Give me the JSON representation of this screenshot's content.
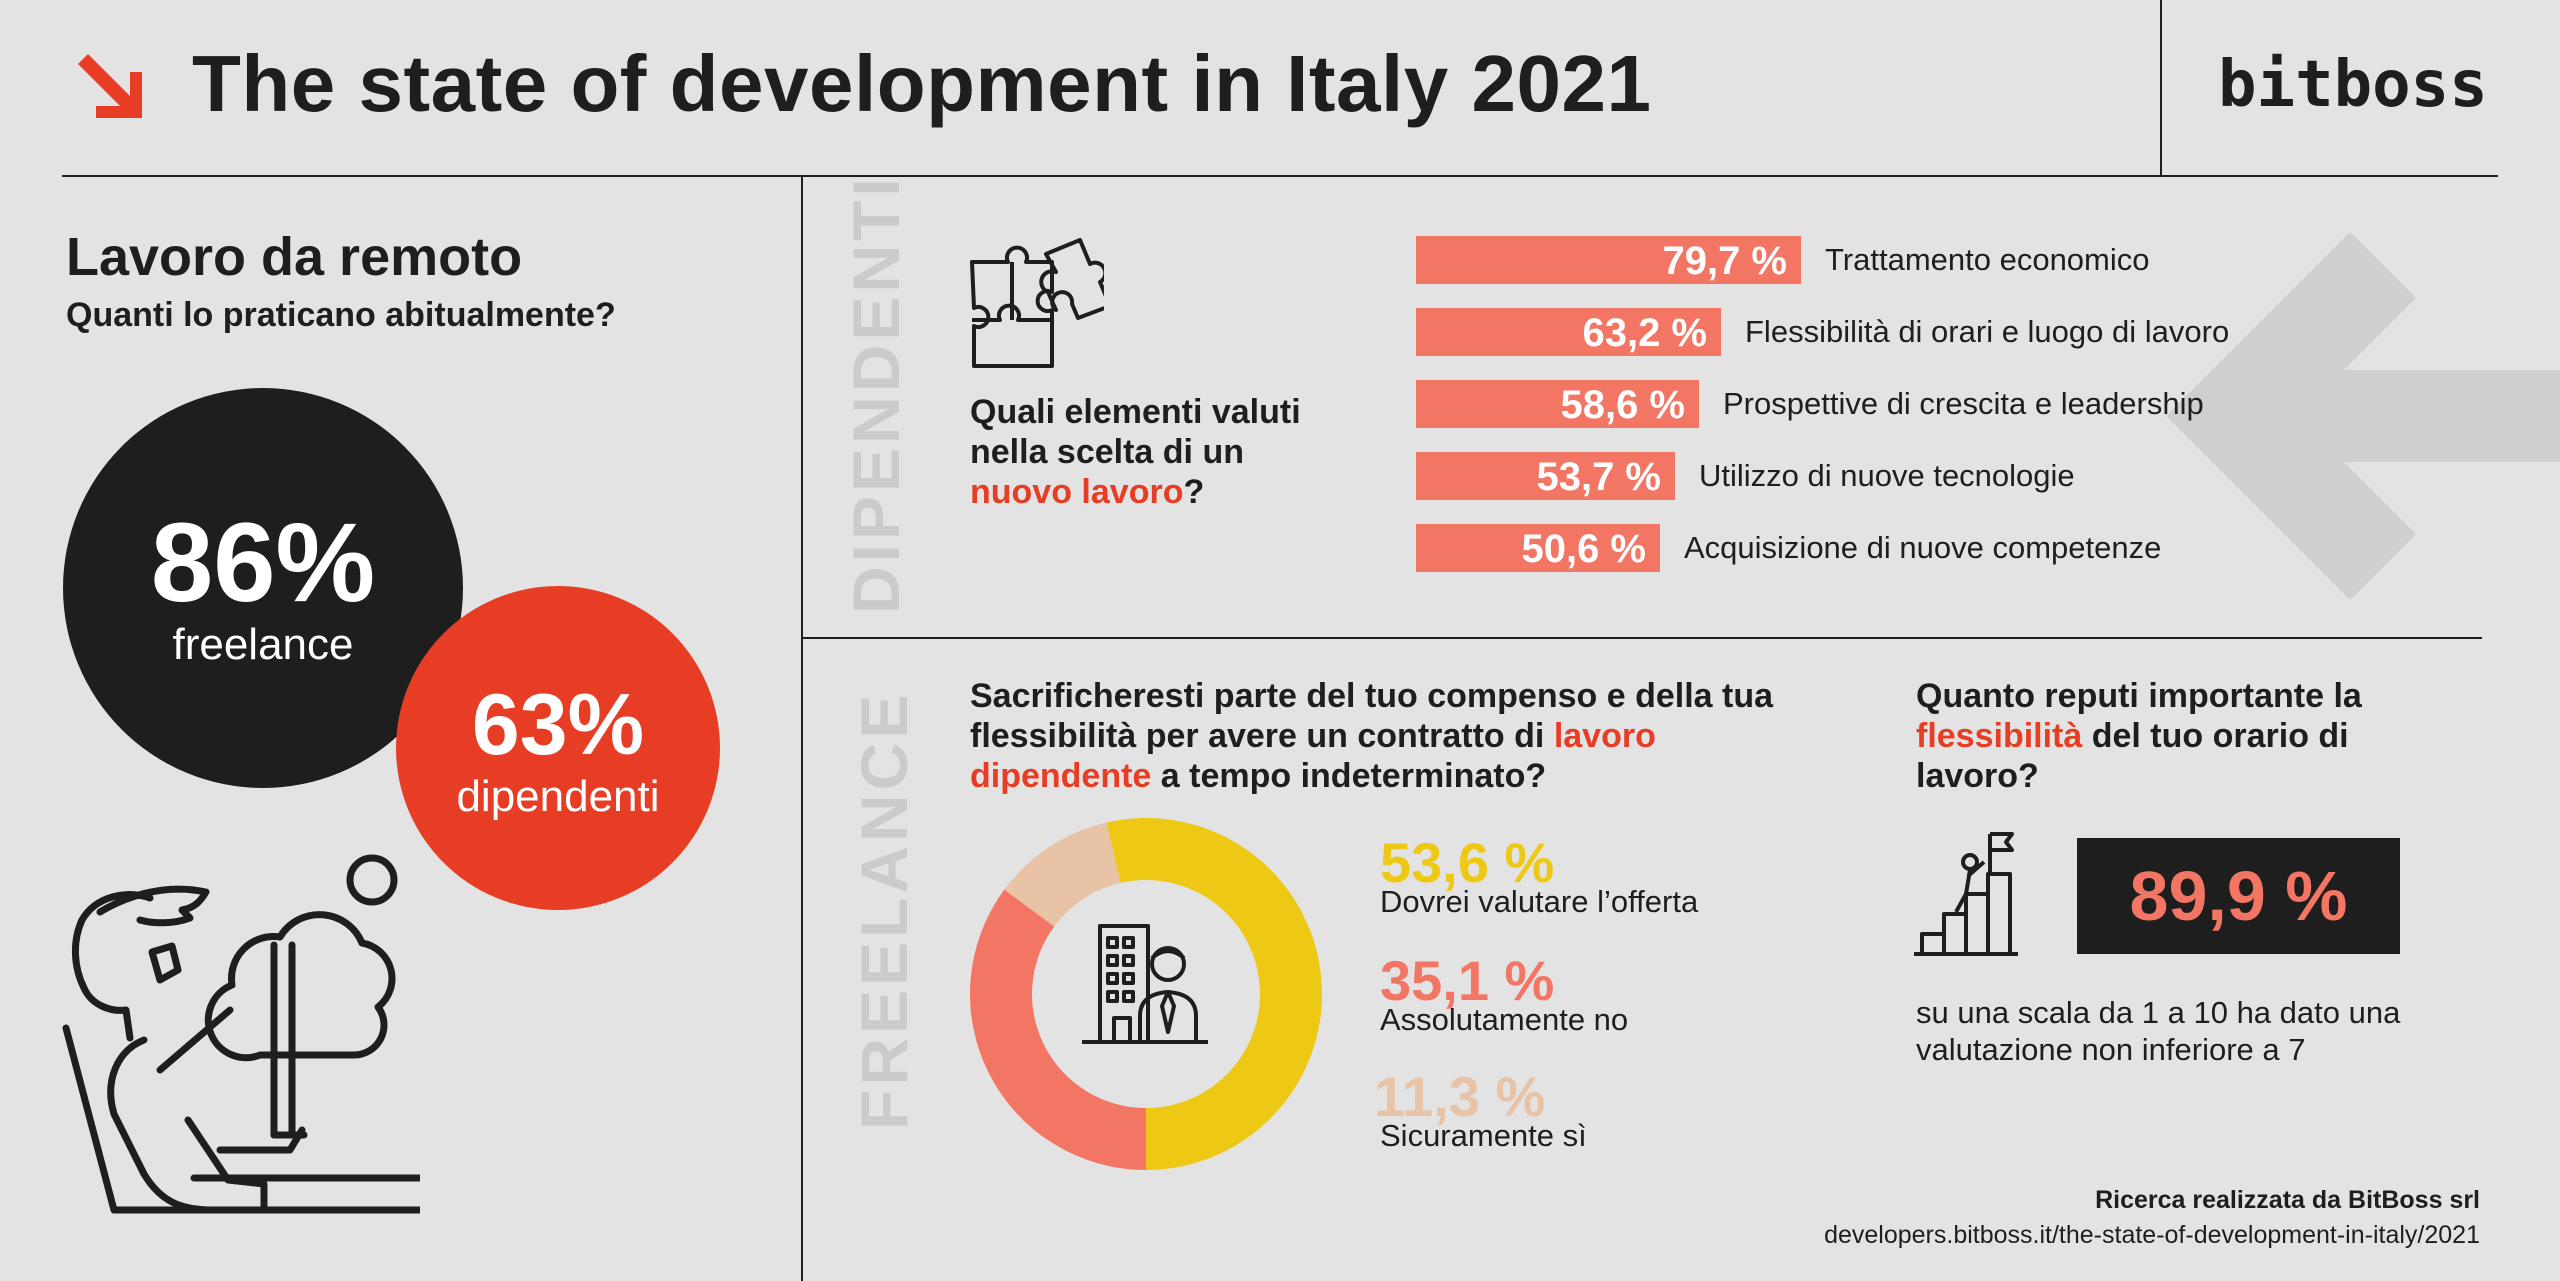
{
  "header": {
    "title": "The state of development in Italy 2021",
    "brand": "bitboss",
    "accent_color": "#e63d24"
  },
  "remote": {
    "title": "Lavoro da remoto",
    "subtitle": "Quanti lo praticano abitualmente?",
    "freelance": {
      "value": "86%",
      "label": "freelance"
    },
    "dipendenti": {
      "value": "63%",
      "label": "dipendenti"
    }
  },
  "dipendenti_section": {
    "side_label": "DIPENDENTI",
    "question_part1": "Quali elementi valuti nella scelta di un ",
    "question_highlight": "nuovo lavoro",
    "question_part2": "?"
  },
  "freelance_section": {
    "side_label": "FREELANCE",
    "question_part1": "Sacrificheresti parte del tuo compenso e della tua flessibilità per avere un contratto di ",
    "question_highlight": "lavoro dipendente",
    "question_part2": " a tempo indeterminato?"
  },
  "flex_section": {
    "question_part1": "Quanto reputi importante la ",
    "question_highlight": "flessibilità",
    "question_part2": " del tuo orario di lavoro?",
    "value": "89,9 %",
    "description": "su una scala da 1 a 10 ha dato una valutazione non inferiore a 7"
  },
  "chart_data": [
    {
      "type": "bar",
      "orientation": "horizontal",
      "title": "Quali elementi valuti nella scelta di un nuovo lavoro?",
      "unit": "%",
      "categories": [
        "Trattamento economico",
        "Flessibilità di orari e luogo di lavoro",
        "Prospettive di crescita e leadership",
        "Utilizzo di nuove tecnologie",
        "Acquisizione di nuove competenze"
      ],
      "values": [
        79.7,
        63.2,
        58.6,
        53.7,
        50.6
      ],
      "labels": [
        "79,7 %",
        "63,2 %",
        "58,6 %",
        "53,7 %",
        "50,6 %"
      ],
      "color": "#f37563"
    },
    {
      "type": "pie",
      "style": "donut",
      "title": "Sacrificheresti parte del tuo compenso e della tua flessibilità per avere un contratto di lavoro dipendente a tempo indeterminato?",
      "categories": [
        "Dovrei valutare l’offerta",
        "Assolutamente no",
        "Sicuramente sì"
      ],
      "values": [
        53.6,
        35.1,
        11.3
      ],
      "labels": [
        "53,6 %",
        "35,1 %",
        "11,3 %"
      ],
      "colors": [
        "#edc916",
        "#f37563",
        "#e8c3a5"
      ]
    }
  ],
  "footer": {
    "credit": "Ricerca realizzata da BitBoss srl",
    "url": "developers.bitboss.it/the-state-of-development-in-italy/2021"
  }
}
